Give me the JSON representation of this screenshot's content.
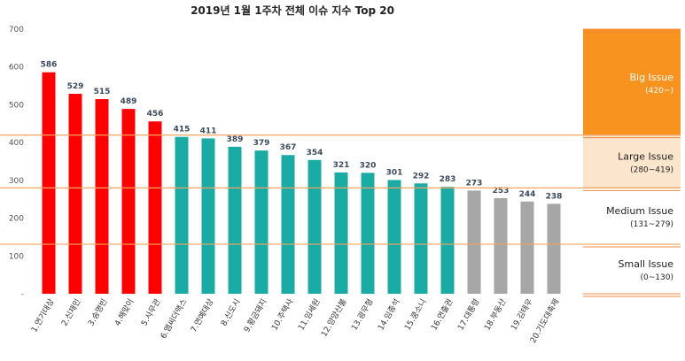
{
  "chart_data": {
    "type": "bar",
    "title": "2019년 1월 1주차 전체 이슈 지수 Top 20",
    "categories": [
      "1.연기대상",
      "2.신재민",
      "3.송명빈",
      "4.해맞이",
      "5.사무관",
      "6.엠씨더맥스",
      "7.연예대상",
      "8.신도시",
      "9.황금돼지",
      "10.주택사",
      "11.임세원",
      "12.양양산불",
      "13.광무형",
      "14.임종석",
      "15.쿵소니",
      "16.연출권",
      "17.대통령",
      "18.부동산",
      "19.김태우",
      "20.기도대축제"
    ],
    "values": [
      586,
      529,
      515,
      489,
      456,
      415,
      411,
      389,
      379,
      367,
      354,
      321,
      320,
      301,
      292,
      283,
      273,
      253,
      244,
      238
    ],
    "colors": [
      "#ff0000",
      "#ff0000",
      "#ff0000",
      "#ff0000",
      "#ff0000",
      "#1aaba5",
      "#1aaba5",
      "#1aaba5",
      "#1aaba5",
      "#1aaba5",
      "#1aaba5",
      "#1aaba5",
      "#1aaba5",
      "#1aaba5",
      "#1aaba5",
      "#1aaba5",
      "#a6a6a6",
      "#a6a6a6",
      "#a6a6a6",
      "#a6a6a6"
    ],
    "yticks": [
      "-",
      "100",
      "200",
      "300",
      "400",
      "500",
      "600",
      "700"
    ],
    "ylim": [
      0,
      700
    ],
    "grid": false,
    "xlabel": "",
    "ylabel": "",
    "threshold_lines": [
      420,
      280,
      131
    ],
    "threshold_line_color": "#f4a460",
    "legend_bands": [
      {
        "name": "Big Issue",
        "range": "(420~)",
        "from": 420,
        "to": 700,
        "bg": "#f7931e",
        "text_color": "#ffffff"
      },
      {
        "name": "Large Issue",
        "range": "(280~419)",
        "from": 280,
        "to": 420,
        "bg": "#fbe5cc",
        "text_color": "#222222"
      },
      {
        "name": "Medium Issue",
        "range": "(131~279)",
        "from": 131,
        "to": 280,
        "bg": "#ffffff",
        "text_color": "#222222"
      },
      {
        "name": "Small Issue",
        "range": "(0~130)",
        "from": 0,
        "to": 131,
        "bg": "#ffffff",
        "text_color": "#222222"
      }
    ]
  }
}
